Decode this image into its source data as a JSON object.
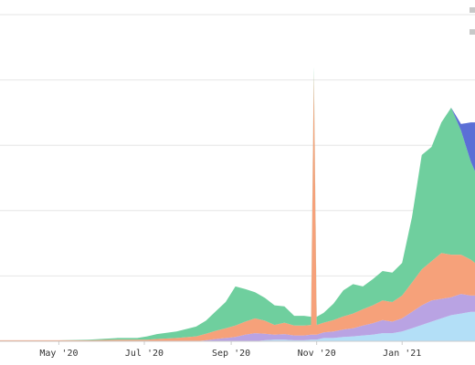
{
  "chart_data": {
    "type": "area",
    "stacked": true,
    "title": "",
    "xlabel": "",
    "ylabel": "",
    "grid": true,
    "legend_position": "top-right",
    "y_tick_labels_visible": false,
    "ylim": [
      0,
      100
    ],
    "xlim": [
      "2020-03-20",
      "2021-02-22"
    ],
    "x_ticks": [
      {
        "date": "2020-05-01",
        "label": "May '20"
      },
      {
        "date": "2020-07-01",
        "label": "Jul '20"
      },
      {
        "date": "2020-09-01",
        "label": "Sep '20"
      },
      {
        "date": "2020-11-01",
        "label": "Nov '20"
      },
      {
        "date": "2021-01-01",
        "label": "Jan '21"
      }
    ],
    "x": [
      "2020-03-20",
      "2020-04-10",
      "2020-05-01",
      "2020-05-22",
      "2020-06-12",
      "2020-06-26",
      "2020-07-03",
      "2020-07-10",
      "2020-07-24",
      "2020-08-07",
      "2020-08-14",
      "2020-08-21",
      "2020-08-28",
      "2020-09-04",
      "2020-09-11",
      "2020-09-18",
      "2020-09-25",
      "2020-10-02",
      "2020-10-09",
      "2020-10-16",
      "2020-10-23",
      "2020-10-28",
      "2020-10-30",
      "2020-11-01",
      "2020-11-06",
      "2020-11-13",
      "2020-11-20",
      "2020-11-27",
      "2020-12-04",
      "2020-12-11",
      "2020-12-18",
      "2020-12-25",
      "2021-01-01",
      "2021-01-08",
      "2021-01-15",
      "2021-01-22",
      "2021-01-29",
      "2021-02-05",
      "2021-02-12",
      "2021-02-19",
      "2021-02-22"
    ],
    "series": [
      {
        "color": "#b3dff7",
        "values": [
          0,
          0,
          0,
          0,
          0,
          0,
          0,
          0,
          0,
          0,
          0,
          0,
          0,
          0,
          0,
          0,
          0.3,
          0.5,
          0.5,
          0.3,
          0.3,
          0.5,
          0.5,
          0.5,
          1,
          1,
          1.3,
          1.5,
          1.8,
          2,
          2.5,
          2.5,
          3,
          4,
          5,
          6,
          7,
          8,
          8.5,
          9,
          9
        ]
      },
      {
        "color": "#b9a3e3",
        "values": [
          0,
          0,
          0,
          0,
          0,
          0,
          0,
          0,
          0,
          0,
          0.3,
          0.7,
          1,
          1.3,
          2,
          2.5,
          2,
          1.5,
          1.7,
          1.5,
          1.5,
          1.5,
          1.5,
          1.5,
          1.7,
          2,
          2.3,
          2.5,
          3,
          3.5,
          4,
          3.5,
          4,
          5,
          6,
          6.5,
          6,
          5.5,
          6,
          5,
          5
        ]
      },
      {
        "color": "#f6a17a",
        "values": [
          0.3,
          0.3,
          0.3,
          0.3,
          0.5,
          0.5,
          0.5,
          0.7,
          1,
          1.5,
          2,
          2.5,
          3,
          3.5,
          4,
          4.5,
          4,
          3,
          3.5,
          3,
          3,
          3,
          80,
          3,
          3,
          3.5,
          4,
          4.5,
          5,
          5.5,
          6,
          6,
          7,
          9,
          11,
          12,
          14,
          13,
          12,
          11,
          10
        ]
      },
      {
        "color": "#6fcf9e",
        "values": [
          0,
          0,
          0,
          0.2,
          0.5,
          0.5,
          1,
          1.5,
          2,
          3,
          4,
          6,
          8,
          12,
          10,
          8,
          7,
          6,
          5,
          3,
          3,
          2.5,
          2,
          2.5,
          3,
          5,
          8,
          9,
          7,
          8,
          9,
          9,
          10,
          20,
          35,
          35,
          40,
          45,
          38,
          30,
          28
        ]
      },
      {
        "color": "#5b6fd6",
        "values": [
          0,
          0,
          0,
          0,
          0,
          0,
          0,
          0,
          0,
          0,
          0,
          0,
          0,
          0,
          0,
          0,
          0,
          0,
          0,
          0,
          0,
          0,
          0,
          0,
          0,
          0,
          0,
          0,
          0,
          0,
          0,
          0,
          0,
          0,
          0,
          0,
          0,
          0,
          2,
          12,
          15
        ]
      }
    ]
  }
}
